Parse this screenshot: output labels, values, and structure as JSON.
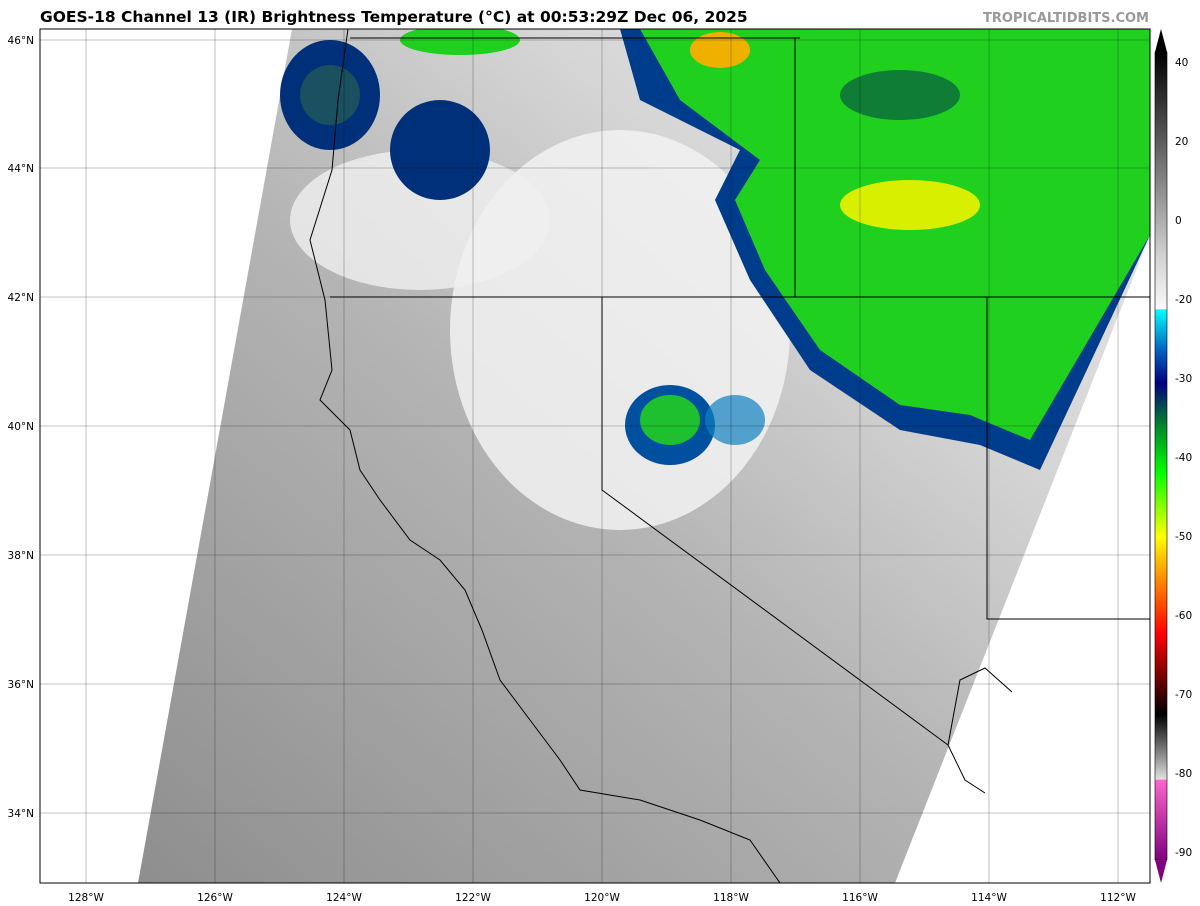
{
  "title": "GOES-18 Channel 13 (IR) Brightness Temperature (°C) at 00:53:29Z Dec 06, 2025",
  "watermark": "TROPICALTIDBITS.COM",
  "map": {
    "lat_labels": [
      "46°N",
      "44°N",
      "42°N",
      "40°N",
      "38°N",
      "36°N",
      "34°N"
    ],
    "lon_labels": [
      "128°W",
      "126°W",
      "124°W",
      "122°W",
      "120°W",
      "118°W",
      "116°W",
      "114°W",
      "112°W"
    ]
  },
  "colorbar": {
    "ticks": [
      "40",
      "20",
      "0",
      "-20",
      "-30",
      "-40",
      "-50",
      "-60",
      "-70",
      "-80",
      "-90"
    ],
    "colors": {
      "warm_black": "#000000",
      "gray": "#808080",
      "white": "#ffffff",
      "cyan": "#00ffff",
      "navy": "#000080",
      "green": "#00ff00",
      "yellow": "#ffff00",
      "orange": "#ff8000",
      "red": "#ff0000",
      "dark_red": "#600000",
      "magenta": "#ff66cc",
      "purple": "#800080"
    }
  }
}
